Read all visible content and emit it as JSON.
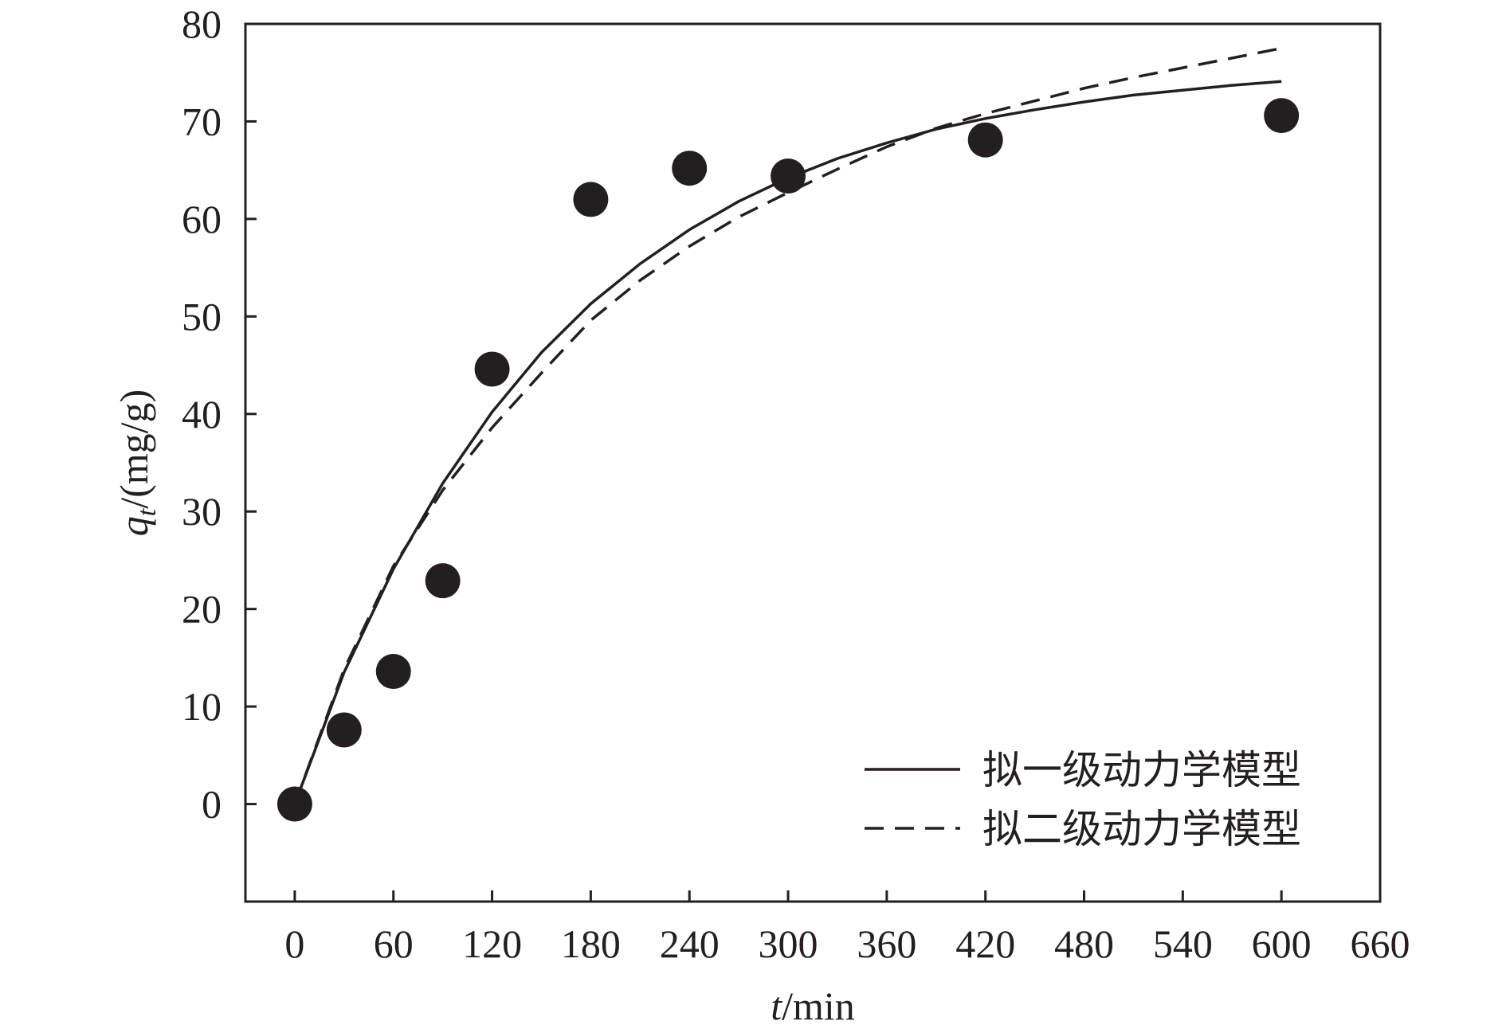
{
  "chart_data": {
    "type": "scatter",
    "xlabel": {
      "var": "t",
      "unit": "/min"
    },
    "ylabel": {
      "var": "q",
      "sub": "t",
      "unit": "/(mg/g)"
    },
    "xlim": [
      -30,
      660
    ],
    "ylim": [
      -10,
      80
    ],
    "x_ticks": [
      0,
      60,
      120,
      180,
      240,
      300,
      360,
      420,
      480,
      540,
      600,
      660
    ],
    "y_ticks": [
      0,
      10,
      20,
      30,
      40,
      50,
      60,
      70,
      80
    ],
    "grid": false,
    "legend_position": "bottom-right",
    "colors": {
      "ink": "#231f20"
    },
    "points": {
      "x": [
        0,
        30,
        60,
        90,
        120,
        180,
        240,
        300,
        420,
        600
      ],
      "y": [
        0,
        7.6,
        13.6,
        22.9,
        44.6,
        62.0,
        65.2,
        64.4,
        68.1,
        70.6
      ]
    },
    "series": [
      {
        "name": "拟一级动力学模型",
        "style": "solid",
        "x": [
          0,
          30,
          60,
          90,
          120,
          150,
          180,
          210,
          240,
          270,
          300,
          330,
          360,
          390,
          420,
          450,
          480,
          510,
          540,
          570,
          600
        ],
        "y": [
          0,
          13.5,
          24.1,
          32.9,
          40.2,
          46.3,
          51.3,
          55.4,
          58.9,
          61.8,
          64.2,
          66.2,
          67.8,
          69.2,
          70.3,
          71.2,
          72.0,
          72.7,
          73.2,
          73.7,
          74.1
        ]
      },
      {
        "name": "拟二级动力学模型",
        "style": "dashed",
        "x": [
          0,
          30,
          60,
          90,
          120,
          150,
          180,
          210,
          240,
          270,
          300,
          330,
          360,
          390,
          420,
          450,
          480,
          510,
          540,
          570,
          600
        ],
        "y": [
          0,
          13.8,
          24.4,
          32.2,
          38.6,
          44.2,
          49.6,
          53.7,
          57.2,
          60.2,
          62.7,
          65.1,
          67.4,
          69.3,
          70.8,
          72.1,
          73.4,
          74.5,
          75.5,
          76.5,
          77.5
        ]
      }
    ]
  }
}
